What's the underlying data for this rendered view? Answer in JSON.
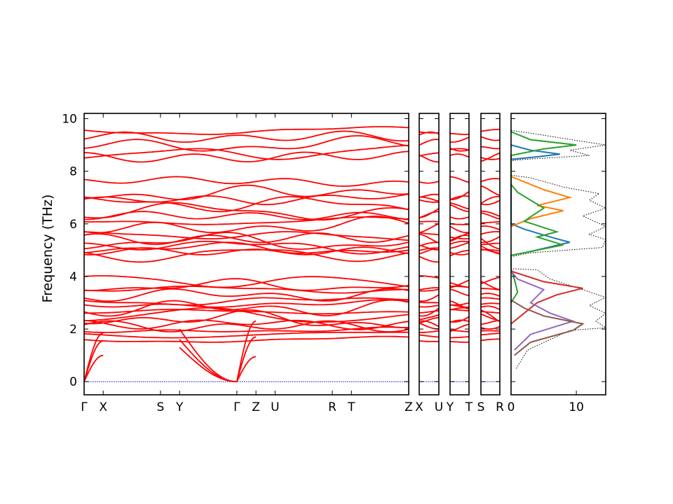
{
  "chart_data": {
    "type": "line",
    "ylabel": "Frequency (THz)",
    "ylim": [
      -0.5,
      10.2
    ],
    "yticks": [
      0,
      2,
      4,
      6,
      8,
      10
    ],
    "band_color": "#ff0000",
    "zero_line_color": "#0000cc",
    "segments": [
      {
        "name": "main",
        "xlim": [
          0,
          17
        ],
        "kpoints": [
          {
            "label": "Γ",
            "x": 0
          },
          {
            "label": "X",
            "x": 1
          },
          {
            "label": "S",
            "x": 4
          },
          {
            "label": "Y",
            "x": 5
          },
          {
            "label": "Γ",
            "x": 8
          },
          {
            "label": "Z",
            "x": 9
          },
          {
            "label": "U",
            "x": 10
          },
          {
            "label": "R",
            "x": 13
          },
          {
            "label": "T",
            "x": 14
          },
          {
            "label": "Z",
            "x": 17
          }
        ]
      },
      {
        "name": "X-U",
        "xlim": [
          0,
          1
        ],
        "kpoints": [
          {
            "label": "X",
            "x": 0
          },
          {
            "label": "U",
            "x": 1
          }
        ]
      },
      {
        "name": "Y-T",
        "xlim": [
          0,
          1
        ],
        "kpoints": [
          {
            "label": "Y",
            "x": 0
          },
          {
            "label": "T",
            "x": 1
          }
        ]
      },
      {
        "name": "S-R",
        "xlim": [
          0,
          1
        ],
        "kpoints": [
          {
            "label": "S",
            "x": 0
          },
          {
            "label": "R",
            "x": 1
          }
        ]
      }
    ],
    "acoustic_branches": [
      {
        "segment": "main",
        "x": [
          0,
          1
        ],
        "y": [
          0.0,
          1.0
        ]
      },
      {
        "segment": "main",
        "x": [
          0,
          1
        ],
        "y": [
          0.0,
          1.55
        ]
      },
      {
        "segment": "main",
        "x": [
          0,
          1
        ],
        "y": [
          0.0,
          1.85
        ]
      },
      {
        "segment": "main",
        "x": [
          5,
          8
        ],
        "y": [
          2.0,
          0.0
        ]
      },
      {
        "segment": "main",
        "x": [
          5,
          8
        ],
        "y": [
          1.6,
          0.0
        ]
      },
      {
        "segment": "main",
        "x": [
          5,
          8
        ],
        "y": [
          1.3,
          0.0
        ]
      },
      {
        "segment": "main",
        "x": [
          8,
          9
        ],
        "y": [
          0.0,
          0.95
        ]
      },
      {
        "segment": "main",
        "x": [
          8,
          9
        ],
        "y": [
          0.0,
          1.7
        ]
      },
      {
        "segment": "main",
        "x": [
          8,
          9
        ],
        "y": [
          0.0,
          2.3
        ]
      }
    ],
    "optical_band_energies_at_gamma": [
      1.6,
      1.8,
      1.95,
      2.1,
      2.2,
      2.35,
      2.5,
      2.65,
      2.8,
      2.95,
      3.1,
      3.3,
      3.5,
      3.65,
      3.8,
      4.85,
      4.95,
      5.05,
      5.15,
      5.3,
      5.45,
      5.55,
      5.9,
      6.1,
      6.3,
      6.45,
      6.75,
      6.95,
      7.2,
      7.6,
      8.55,
      8.7,
      9.0,
      9.3,
      9.55
    ],
    "dos": {
      "xlim": [
        0,
        14.5
      ],
      "xticks": [
        0,
        10
      ],
      "series": [
        {
          "color": "#000000",
          "style": "dotted",
          "points": [
            [
              0.8,
              0.5
            ],
            [
              2.5,
              1.2
            ],
            [
              9,
              1.95
            ],
            [
              14.5,
              2.05
            ],
            [
              13,
              2.3
            ],
            [
              14.5,
              2.6
            ],
            [
              12,
              2.9
            ],
            [
              14.5,
              3.2
            ],
            [
              11,
              3.5
            ],
            [
              6,
              3.9
            ],
            [
              4,
              4.25
            ],
            [
              0,
              4.3
            ],
            [
              0,
              4.75
            ],
            [
              3,
              4.9
            ],
            [
              14,
              5.1
            ],
            [
              14.5,
              5.4
            ],
            [
              12,
              5.6
            ],
            [
              14.5,
              5.9
            ],
            [
              11,
              6.3
            ],
            [
              14.5,
              6.6
            ],
            [
              12,
              6.9
            ],
            [
              13.5,
              7.15
            ],
            [
              8,
              7.4
            ],
            [
              3,
              7.75
            ],
            [
              0,
              7.85
            ],
            [
              0,
              8.4
            ],
            [
              2,
              8.45
            ],
            [
              12,
              8.6
            ],
            [
              9,
              8.8
            ],
            [
              14.5,
              9.0
            ],
            [
              8,
              9.25
            ],
            [
              3,
              9.45
            ],
            [
              0,
              9.55
            ]
          ]
        },
        {
          "color": "#1f77b4",
          "style": "solid",
          "points": [
            [
              0,
              4.8
            ],
            [
              3,
              4.95
            ],
            [
              9,
              5.3
            ],
            [
              6,
              5.5
            ],
            [
              2,
              5.8
            ],
            [
              0,
              6.0
            ],
            [
              0,
              8.45
            ],
            [
              4,
              8.55
            ],
            [
              7.5,
              8.65
            ],
            [
              3,
              8.8
            ],
            [
              0,
              9.0
            ]
          ]
        },
        {
          "color": "#ff7f0e",
          "style": "solid",
          "points": [
            [
              0,
              5.9
            ],
            [
              3,
              6.2
            ],
            [
              8,
              6.5
            ],
            [
              4,
              6.7
            ],
            [
              9,
              7.0
            ],
            [
              5,
              7.3
            ],
            [
              2,
              7.6
            ],
            [
              0,
              7.8
            ]
          ]
        },
        {
          "color": "#2ca02c",
          "style": "solid",
          "points": [
            [
              0,
              3.0
            ],
            [
              1,
              3.4
            ],
            [
              0.5,
              3.9
            ],
            [
              0,
              4.3
            ],
            [
              0,
              4.8
            ],
            [
              4,
              5.0
            ],
            [
              8,
              5.2
            ],
            [
              4,
              5.5
            ],
            [
              7,
              5.7
            ],
            [
              2,
              6.1
            ],
            [
              5,
              6.6
            ],
            [
              1,
              7.2
            ],
            [
              0,
              7.5
            ],
            [
              0,
              8.6
            ],
            [
              5,
              8.85
            ],
            [
              10,
              9.0
            ],
            [
              3,
              9.2
            ],
            [
              1,
              9.4
            ],
            [
              0,
              9.5
            ]
          ]
        },
        {
          "color": "#d62728",
          "style": "solid",
          "points": [
            [
              0,
              2.2
            ],
            [
              2,
              2.6
            ],
            [
              4,
              3.0
            ],
            [
              7,
              3.3
            ],
            [
              11,
              3.55
            ],
            [
              5,
              3.8
            ],
            [
              0,
              4.2
            ]
          ]
        },
        {
          "color": "#9467bd",
          "style": "solid",
          "points": [
            [
              0.5,
              1.2
            ],
            [
              3,
              1.8
            ],
            [
              9.5,
              2.3
            ],
            [
              6,
              2.6
            ],
            [
              3,
              3.0
            ],
            [
              5,
              3.5
            ],
            [
              1,
              3.9
            ],
            [
              0,
              4.2
            ]
          ]
        },
        {
          "color": "#8c564b",
          "style": "solid",
          "points": [
            [
              0.5,
              1.0
            ],
            [
              3,
              1.5
            ],
            [
              9.5,
              1.95
            ],
            [
              11,
              2.2
            ],
            [
              5,
              2.5
            ],
            [
              2,
              2.8
            ],
            [
              0,
              3.1
            ]
          ]
        }
      ]
    }
  }
}
